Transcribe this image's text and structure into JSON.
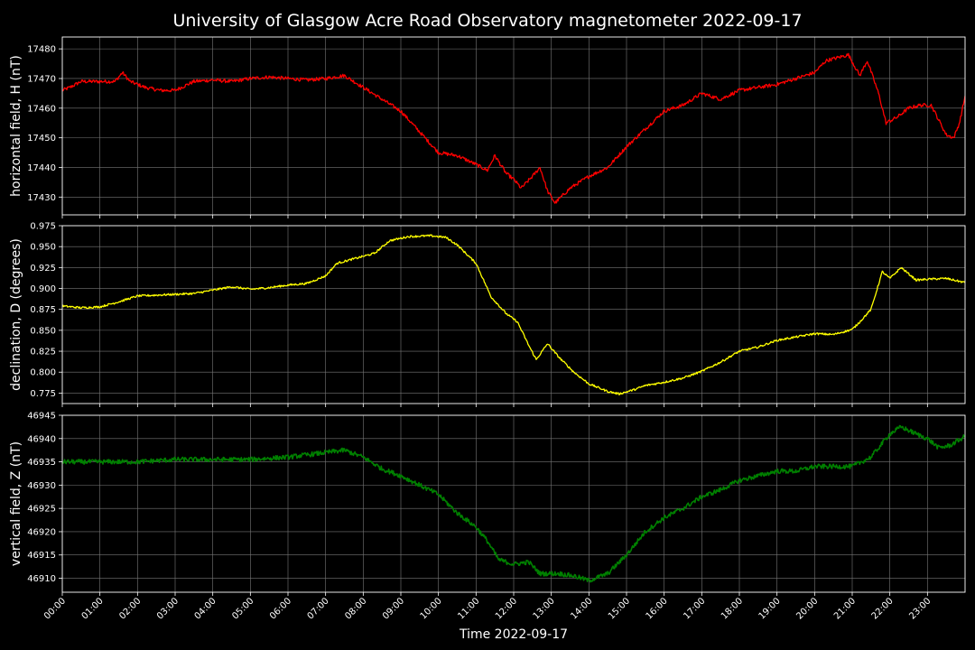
{
  "chart_data": {
    "type": "line",
    "title": "University of Glasgow Acre Road Observatory magnetometer 2022-09-17",
    "xlabel": "Time 2022-09-17",
    "x_ticks": [
      "00:00",
      "01:00",
      "02:00",
      "03:00",
      "04:00",
      "05:00",
      "06:00",
      "07:00",
      "08:00",
      "09:00",
      "10:00",
      "11:00",
      "12:00",
      "13:00",
      "14:00",
      "15:00",
      "16:00",
      "17:00",
      "18:00",
      "19:00",
      "20:00",
      "21:00",
      "22:00",
      "23:00"
    ],
    "xlim_hours": [
      0,
      24
    ],
    "grid": true,
    "panels": [
      {
        "ylabel": "horizontal field, H (nT)",
        "color": "#ff0000",
        "ylim": [
          17424,
          17484
        ],
        "y_ticks": [
          17430,
          17440,
          17450,
          17460,
          17470,
          17480
        ],
        "y_tick_labels": [
          "17430",
          "17440",
          "17450",
          "17460",
          "17470",
          "17480"
        ],
        "noise": 0.6,
        "series": [
          [
            0,
            17466
          ],
          [
            0.2,
            17467
          ],
          [
            0.5,
            17469
          ],
          [
            1,
            17469
          ],
          [
            1.4,
            17469
          ],
          [
            1.6,
            17472
          ],
          [
            1.8,
            17469
          ],
          [
            2.2,
            17467
          ],
          [
            2.6,
            17466
          ],
          [
            3,
            17466
          ],
          [
            3.5,
            17469
          ],
          [
            4,
            17469.5
          ],
          [
            4.5,
            17469
          ],
          [
            5,
            17470
          ],
          [
            5.5,
            17470.5
          ],
          [
            6,
            17470
          ],
          [
            6.5,
            17469.5
          ],
          [
            7,
            17470
          ],
          [
            7.5,
            17471
          ],
          [
            8,
            17467
          ],
          [
            8.5,
            17463
          ],
          [
            9,
            17459
          ],
          [
            9.5,
            17452
          ],
          [
            10,
            17445
          ],
          [
            10.5,
            17444
          ],
          [
            11,
            17441
          ],
          [
            11.3,
            17439
          ],
          [
            11.5,
            17444
          ],
          [
            11.8,
            17438
          ],
          [
            12,
            17436
          ],
          [
            12.2,
            17433
          ],
          [
            12.5,
            17437
          ],
          [
            12.7,
            17440
          ],
          [
            12.9,
            17432
          ],
          [
            13.1,
            17428
          ],
          [
            13.5,
            17433
          ],
          [
            14,
            17437
          ],
          [
            14.5,
            17440
          ],
          [
            15,
            17447
          ],
          [
            15.5,
            17453
          ],
          [
            16,
            17459
          ],
          [
            16.5,
            17461
          ],
          [
            17,
            17465
          ],
          [
            17.5,
            17463
          ],
          [
            18,
            17466
          ],
          [
            18.5,
            17467
          ],
          [
            19,
            17468
          ],
          [
            19.5,
            17470
          ],
          [
            20,
            17472
          ],
          [
            20.3,
            17476
          ],
          [
            20.6,
            17477
          ],
          [
            20.9,
            17478
          ],
          [
            21.2,
            17471
          ],
          [
            21.4,
            17476
          ],
          [
            21.7,
            17465
          ],
          [
            21.9,
            17455
          ],
          [
            22.2,
            17457
          ],
          [
            22.5,
            17460
          ],
          [
            22.8,
            17461
          ],
          [
            23.1,
            17461
          ],
          [
            23.3,
            17456
          ],
          [
            23.5,
            17451
          ],
          [
            23.7,
            17450
          ],
          [
            23.85,
            17455
          ],
          [
            24,
            17464
          ]
        ]
      },
      {
        "ylabel": "declination, D (degrees)",
        "color": "#ffff00",
        "ylim": [
          0.7625,
          0.975
        ],
        "y_ticks": [
          0.775,
          0.8,
          0.825,
          0.85,
          0.875,
          0.9,
          0.925,
          0.95,
          0.975
        ],
        "y_tick_labels": [
          "0.775",
          "0.800",
          "0.825",
          "0.850",
          "0.875",
          "0.900",
          "0.925",
          "0.950",
          "0.975"
        ],
        "noise": 0.0012,
        "series": [
          [
            0,
            0.879
          ],
          [
            0.5,
            0.877
          ],
          [
            1,
            0.878
          ],
          [
            1.5,
            0.884
          ],
          [
            2,
            0.891
          ],
          [
            3,
            0.893
          ],
          [
            3.5,
            0.894
          ],
          [
            4,
            0.898
          ],
          [
            4.5,
            0.902
          ],
          [
            5,
            0.899
          ],
          [
            5.5,
            0.901
          ],
          [
            6,
            0.904
          ],
          [
            6.5,
            0.906
          ],
          [
            7,
            0.915
          ],
          [
            7.3,
            0.93
          ],
          [
            7.8,
            0.936
          ],
          [
            8.3,
            0.942
          ],
          [
            8.7,
            0.957
          ],
          [
            9.2,
            0.962
          ],
          [
            9.8,
            0.963
          ],
          [
            10.2,
            0.961
          ],
          [
            10.5,
            0.952
          ],
          [
            11,
            0.93
          ],
          [
            11.4,
            0.89
          ],
          [
            11.8,
            0.87
          ],
          [
            12.1,
            0.86
          ],
          [
            12.4,
            0.832
          ],
          [
            12.6,
            0.815
          ],
          [
            12.9,
            0.834
          ],
          [
            13.2,
            0.818
          ],
          [
            13.6,
            0.8
          ],
          [
            14,
            0.786
          ],
          [
            14.5,
            0.777
          ],
          [
            14.8,
            0.774
          ],
          [
            15.2,
            0.779
          ],
          [
            15.5,
            0.784
          ],
          [
            16,
            0.788
          ],
          [
            16.5,
            0.793
          ],
          [
            17,
            0.801
          ],
          [
            17.5,
            0.812
          ],
          [
            18,
            0.825
          ],
          [
            18.5,
            0.83
          ],
          [
            19,
            0.838
          ],
          [
            19.5,
            0.842
          ],
          [
            20,
            0.846
          ],
          [
            20.5,
            0.845
          ],
          [
            21,
            0.851
          ],
          [
            21.2,
            0.86
          ],
          [
            21.5,
            0.875
          ],
          [
            21.8,
            0.92
          ],
          [
            22,
            0.912
          ],
          [
            22.3,
            0.925
          ],
          [
            22.7,
            0.91
          ],
          [
            23,
            0.911
          ],
          [
            23.5,
            0.912
          ],
          [
            24,
            0.907
          ]
        ]
      },
      {
        "ylabel": "vertical field, Z (nT)",
        "color": "#008000",
        "ylim": [
          46907,
          46945
        ],
        "y_ticks": [
          46910,
          46915,
          46920,
          46925,
          46930,
          46935,
          46940,
          46945
        ],
        "y_tick_labels": [
          "46910",
          "46915",
          "46920",
          "46925",
          "46930",
          "46935",
          "46940",
          "46945"
        ],
        "noise": 0.5,
        "series": [
          [
            0,
            46935
          ],
          [
            1,
            46935
          ],
          [
            2,
            46935
          ],
          [
            3,
            46935.5
          ],
          [
            4,
            46935.5
          ],
          [
            5,
            46935.5
          ],
          [
            6,
            46936
          ],
          [
            7,
            46937
          ],
          [
            7.5,
            46937.5
          ],
          [
            8,
            46936
          ],
          [
            8.5,
            46933.5
          ],
          [
            9,
            46932
          ],
          [
            9.5,
            46930
          ],
          [
            10,
            46928
          ],
          [
            10.5,
            46924
          ],
          [
            11,
            46921
          ],
          [
            11.3,
            46918
          ],
          [
            11.6,
            46914
          ],
          [
            12,
            46913
          ],
          [
            12.4,
            46913.5
          ],
          [
            12.7,
            46911
          ],
          [
            13.2,
            46911
          ],
          [
            13.6,
            46910.5
          ],
          [
            14,
            46909.5
          ],
          [
            14.5,
            46911
          ],
          [
            15,
            46915
          ],
          [
            15.5,
            46920
          ],
          [
            16,
            46923
          ],
          [
            16.5,
            46925
          ],
          [
            17,
            46927.5
          ],
          [
            17.5,
            46929
          ],
          [
            18,
            46931
          ],
          [
            18.5,
            46932
          ],
          [
            19,
            46933
          ],
          [
            19.5,
            46933
          ],
          [
            20,
            46934
          ],
          [
            20.5,
            46934
          ],
          [
            21,
            46934
          ],
          [
            21.5,
            46936
          ],
          [
            22,
            46941
          ],
          [
            22.3,
            46942.5
          ],
          [
            22.7,
            46941
          ],
          [
            23,
            46940
          ],
          [
            23.3,
            46938
          ],
          [
            23.6,
            46938.5
          ],
          [
            24,
            46940.5
          ]
        ]
      }
    ]
  }
}
